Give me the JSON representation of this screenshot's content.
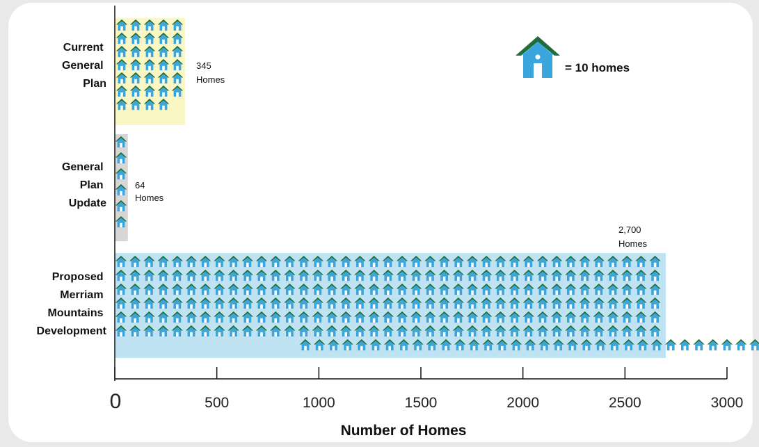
{
  "chart_data": {
    "type": "bar",
    "orientation": "horizontal",
    "categories": [
      [
        "Current",
        "General",
        "Plan"
      ],
      [
        "General",
        "Plan",
        "Update"
      ],
      [
        "Proposed",
        "Merriam",
        "Mountains",
        "Development"
      ]
    ],
    "values": [
      345,
      64,
      2700
    ],
    "value_labels": [
      [
        "345",
        "Homes"
      ],
      [
        "64",
        "Homes"
      ],
      [
        "2,700",
        "Homes"
      ]
    ],
    "bar_colors": [
      "#fbf7c4",
      "#d6d6d6",
      "#bfe3f3"
    ],
    "xlabel": "Number of Homes",
    "xlim": [
      0,
      3000
    ],
    "xticks": [
      "0",
      "500",
      "1000",
      "1500",
      "2000",
      "2500",
      "3000"
    ],
    "tick_values": [
      0,
      500,
      1000,
      1500,
      2000,
      2500,
      3000
    ],
    "grid": false,
    "legend": {
      "text": "= 10 homes",
      "position": "top-right",
      "icon": "house-icon",
      "homes_per_icon": 10
    },
    "icon_colors": {
      "roof": "#1e6e3c",
      "body": "#3aa6dd",
      "window": "#ffffff"
    }
  }
}
